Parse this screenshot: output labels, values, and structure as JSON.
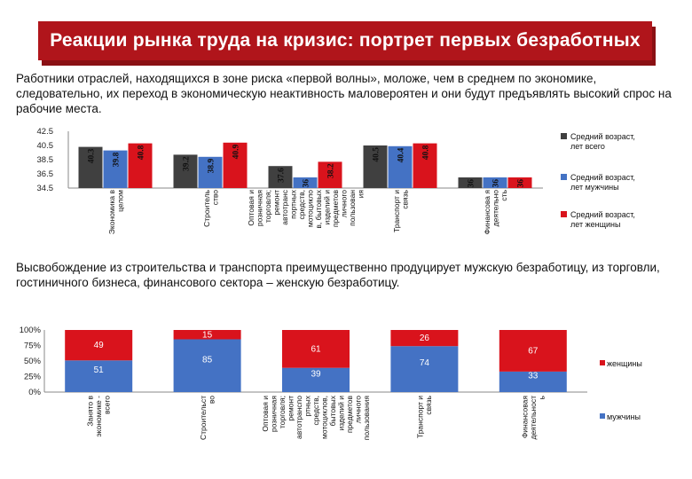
{
  "header": {
    "title": "Реакции рынка труда на кризис: портрет первых безработных"
  },
  "paragraphs": {
    "intro": "Работники отраслей, находящихся в зоне риска «первой волны», моложе, чем в среднем по экономике, следовательно, их переход в экономическую неактивность маловероятен и они будут предъявлять высокий спрос на рабочие места.",
    "second": "Высвобождение из строительства и транспорта преимущественно продуцирует мужскую безработицу, из торговли, гостиничного бизнеса, финансового сектора – женскую безработицу."
  },
  "colors": {
    "all": "#404040",
    "men": "#4472c4",
    "women": "#d9131c"
  },
  "chart_data": [
    {
      "type": "bar",
      "title": "",
      "ylim": [
        34.5,
        42.5
      ],
      "yticks": [
        "42.5",
        "40.5",
        "38.5",
        "36.5",
        "34.5"
      ],
      "categories": [
        "Экономика в целом",
        "Строитель ство",
        "Оптовая и розничная торговля; ремонт автотранс портных средств, мотоцикло в, бытовых изделий и предметов личного пользован ия",
        "Транспорт и связь",
        "Финансова я деятельно сть"
      ],
      "series": [
        {
          "name": "Средний возраст, лет всего",
          "values": [
            40.3,
            39.2,
            37.6,
            40.5,
            36.0
          ],
          "labels": [
            "40.3",
            "39.2",
            "37.6",
            "40.5",
            "36"
          ]
        },
        {
          "name": "Средний возраст, лет мужчины",
          "values": [
            39.8,
            38.9,
            36.0,
            40.4,
            36.0
          ],
          "labels": [
            "39.8",
            "38.9",
            "36",
            "40.4",
            "36"
          ]
        },
        {
          "name": "Средний возраст, лет женщины",
          "values": [
            40.8,
            40.9,
            38.2,
            40.8,
            36.0
          ],
          "labels": [
            "40.8",
            "40.9",
            "38.2",
            "40.8",
            "36"
          ]
        }
      ],
      "legend": "right"
    },
    {
      "type": "bar",
      "stacked": "percent",
      "ylim": [
        0,
        100
      ],
      "yticks": [
        "100%",
        "75%",
        "50%",
        "25%",
        "0%"
      ],
      "categories": [
        "Занято в экономике - всего",
        "Строительст во",
        "Оптовая и розничная торговля; ремонт автотранспо ртных средств, мотоциклов, бытовых изделий и предметов личного пользования",
        "Транспорт и связь",
        "Финансовая деятельност ь"
      ],
      "series": [
        {
          "name": "мужчины",
          "values": [
            51,
            85,
            39,
            74,
            33
          ]
        },
        {
          "name": "женщины",
          "values": [
            49,
            15,
            61,
            26,
            67
          ]
        }
      ],
      "legend": "right"
    }
  ]
}
